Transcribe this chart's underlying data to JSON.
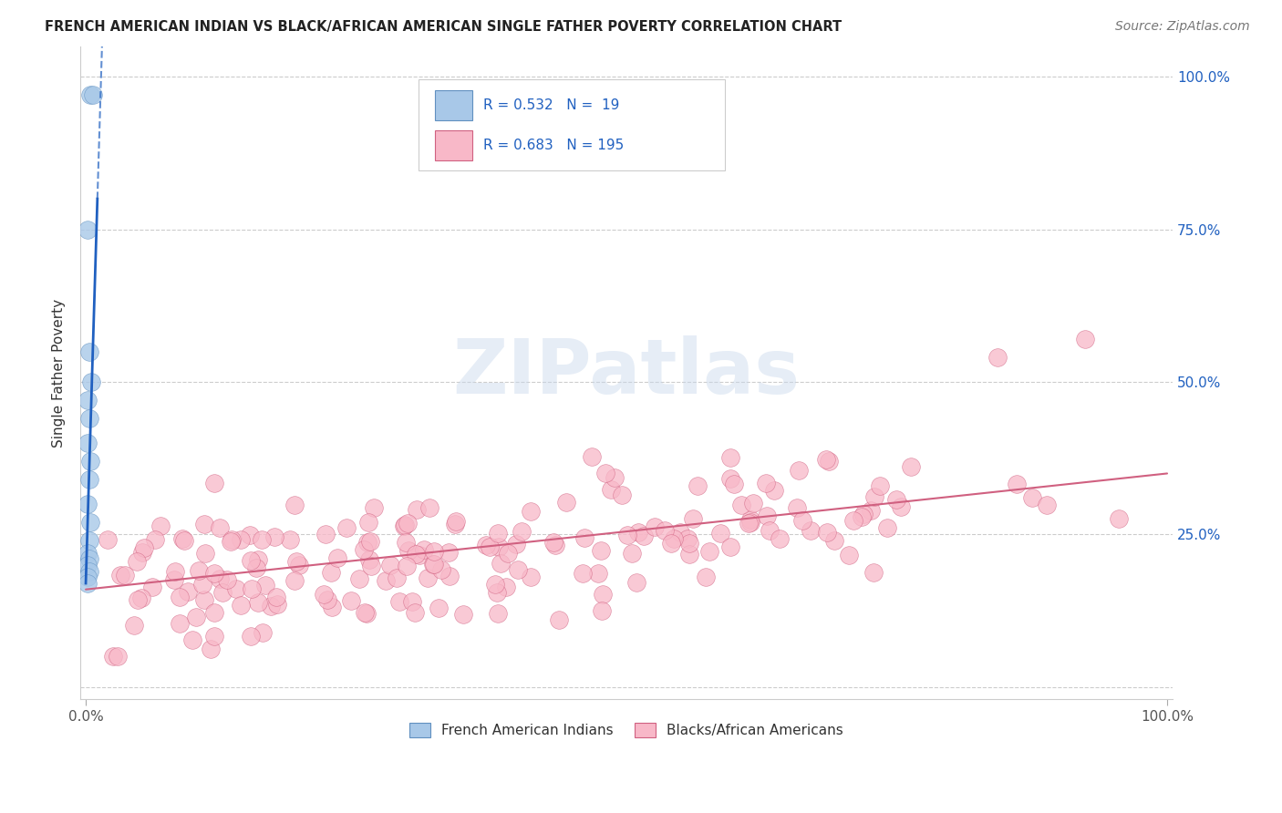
{
  "title": "FRENCH AMERICAN INDIAN VS BLACK/AFRICAN AMERICAN SINGLE FATHER POVERTY CORRELATION CHART",
  "source": "Source: ZipAtlas.com",
  "ylabel": "Single Father Poverty",
  "watermark": "ZIPatlas",
  "blue_R": 0.532,
  "blue_N": 19,
  "pink_R": 0.683,
  "pink_N": 195,
  "blue_color": "#a8c8e8",
  "blue_edge_color": "#6090c0",
  "blue_line_color": "#2060c0",
  "pink_color": "#f8b8c8",
  "pink_edge_color": "#d06080",
  "pink_line_color": "#d06080",
  "legend_blue_label": "French American Indians",
  "legend_pink_label": "Blacks/African Americans",
  "title_color": "#222222",
  "source_color": "#777777",
  "r_n_color": "#2060c0",
  "axis_tick_color": "#555555",
  "right_tick_color": "#2060c0",
  "grid_color": "#cccccc",
  "blue_scatter_x": [
    0.004,
    0.007,
    0.002,
    0.003,
    0.005,
    0.002,
    0.003,
    0.002,
    0.004,
    0.003,
    0.002,
    0.004,
    0.003,
    0.002,
    0.003,
    0.002,
    0.003,
    0.002,
    0.002
  ],
  "blue_scatter_y": [
    0.97,
    0.97,
    0.75,
    0.55,
    0.5,
    0.47,
    0.44,
    0.4,
    0.37,
    0.34,
    0.3,
    0.27,
    0.24,
    0.22,
    0.21,
    0.2,
    0.19,
    0.18,
    0.17
  ],
  "blue_line_x0": 0.0,
  "blue_line_y0": 0.17,
  "blue_line_x1": 0.015,
  "blue_line_y1": 1.05,
  "pink_line_x0": 0.0,
  "pink_line_y0": 0.16,
  "pink_line_x1": 1.0,
  "pink_line_y1": 0.35,
  "xlim": [
    0.0,
    1.0
  ],
  "ylim": [
    0.0,
    1.05
  ],
  "yticks": [
    0.0,
    0.25,
    0.5,
    0.75,
    1.0
  ],
  "yticklabels_right": [
    "",
    "25.0%",
    "50.0%",
    "75.0%",
    "100.0%"
  ]
}
